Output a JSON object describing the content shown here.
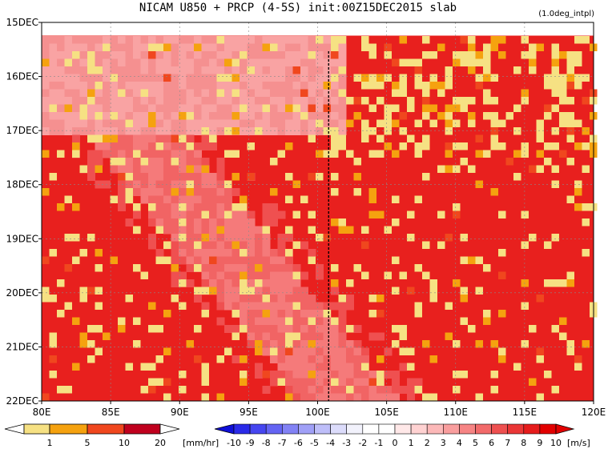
{
  "title": "NICAM   U850 + PRCP (4-5S) init:00Z15DEC2015 slab",
  "note": "(1.0deg_intpl)",
  "chart_data": {
    "type": "heatmap",
    "x_label": "",
    "y_label": "",
    "x_ticks": [
      "80E",
      "85E",
      "90E",
      "95E",
      "100E",
      "105E",
      "110E",
      "115E",
      "120E"
    ],
    "x_tick_values": [
      80,
      85,
      90,
      95,
      100,
      105,
      110,
      115,
      120
    ],
    "xlim": [
      80,
      120
    ],
    "y_ticks": [
      "15DEC",
      "16DEC",
      "17DEC",
      "18DEC",
      "19DEC",
      "20DEC",
      "21DEC",
      "22DEC"
    ],
    "y_tick_values": [
      15,
      16,
      17,
      18,
      19,
      20,
      21,
      22
    ],
    "ylim": [
      15,
      22
    ],
    "grid": true,
    "marker_line_lon": 100.8,
    "precip_colorbar": {
      "labels": [
        "1",
        "5",
        "10",
        "20"
      ],
      "unit": "[mm/hr]",
      "colors": [
        "#ffffff",
        "#f6e183",
        "#f5a20f",
        "#f0471e",
        "#c0001e"
      ]
    },
    "wind_colorbar": {
      "labels": [
        "-10",
        "-9",
        "-8",
        "-7",
        "-6",
        "-5",
        "-4",
        "-3",
        "-2",
        "-1",
        "0",
        "1",
        "2",
        "3",
        "4",
        "5",
        "6",
        "7",
        "8",
        "9",
        "10"
      ],
      "unit": "[m/s]",
      "colors": [
        "#0f0fd8",
        "#2a2ae8",
        "#4646f0",
        "#6464f3",
        "#8282f5",
        "#a0a0f7",
        "#bebef9",
        "#dcdcfb",
        "#f2f2fc",
        "#ffffff",
        "#ffffff",
        "#ffe8e8",
        "#ffd2d2",
        "#fcb8b8",
        "#f99e9e",
        "#f68484",
        "#f26a6a",
        "#ee5050",
        "#ea3636",
        "#e61c1c",
        "#e20000"
      ]
    }
  }
}
